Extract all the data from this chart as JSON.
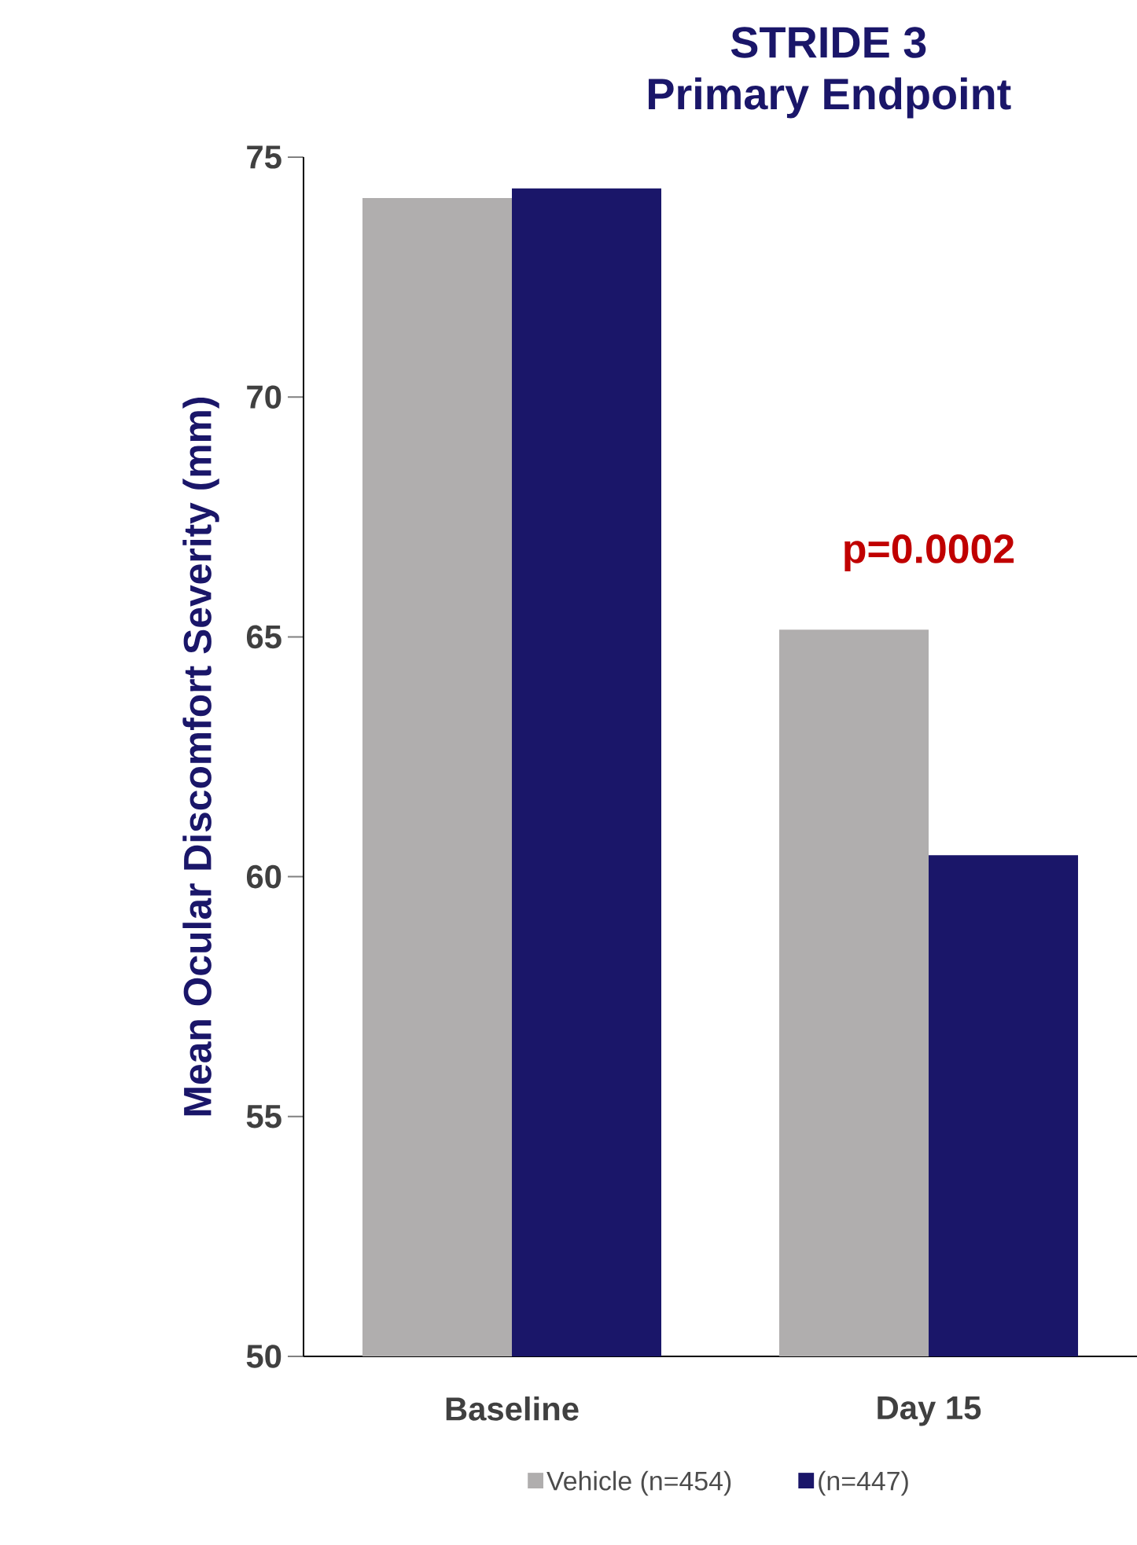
{
  "chart_data": {
    "type": "bar",
    "title": "STRIDE 3",
    "subtitle": "Primary Endpoint",
    "ylabel": "Mean Ocular Discomfort Severity (mm)",
    "categories": [
      "Baseline",
      "Day 15"
    ],
    "series": [
      {
        "name": "Vehicle (n=454)",
        "color": "#b0aeae",
        "values": [
          74.15,
          65.15
        ]
      },
      {
        "name": "(n=447)",
        "color": "#1a1669",
        "values": [
          74.35,
          60.45
        ]
      }
    ],
    "ylim": [
      50,
      75
    ],
    "yticks": [
      50,
      55,
      60,
      65,
      70,
      75
    ],
    "annotations": [
      "p=0.0002"
    ],
    "legend": "bottom",
    "grid": false
  }
}
